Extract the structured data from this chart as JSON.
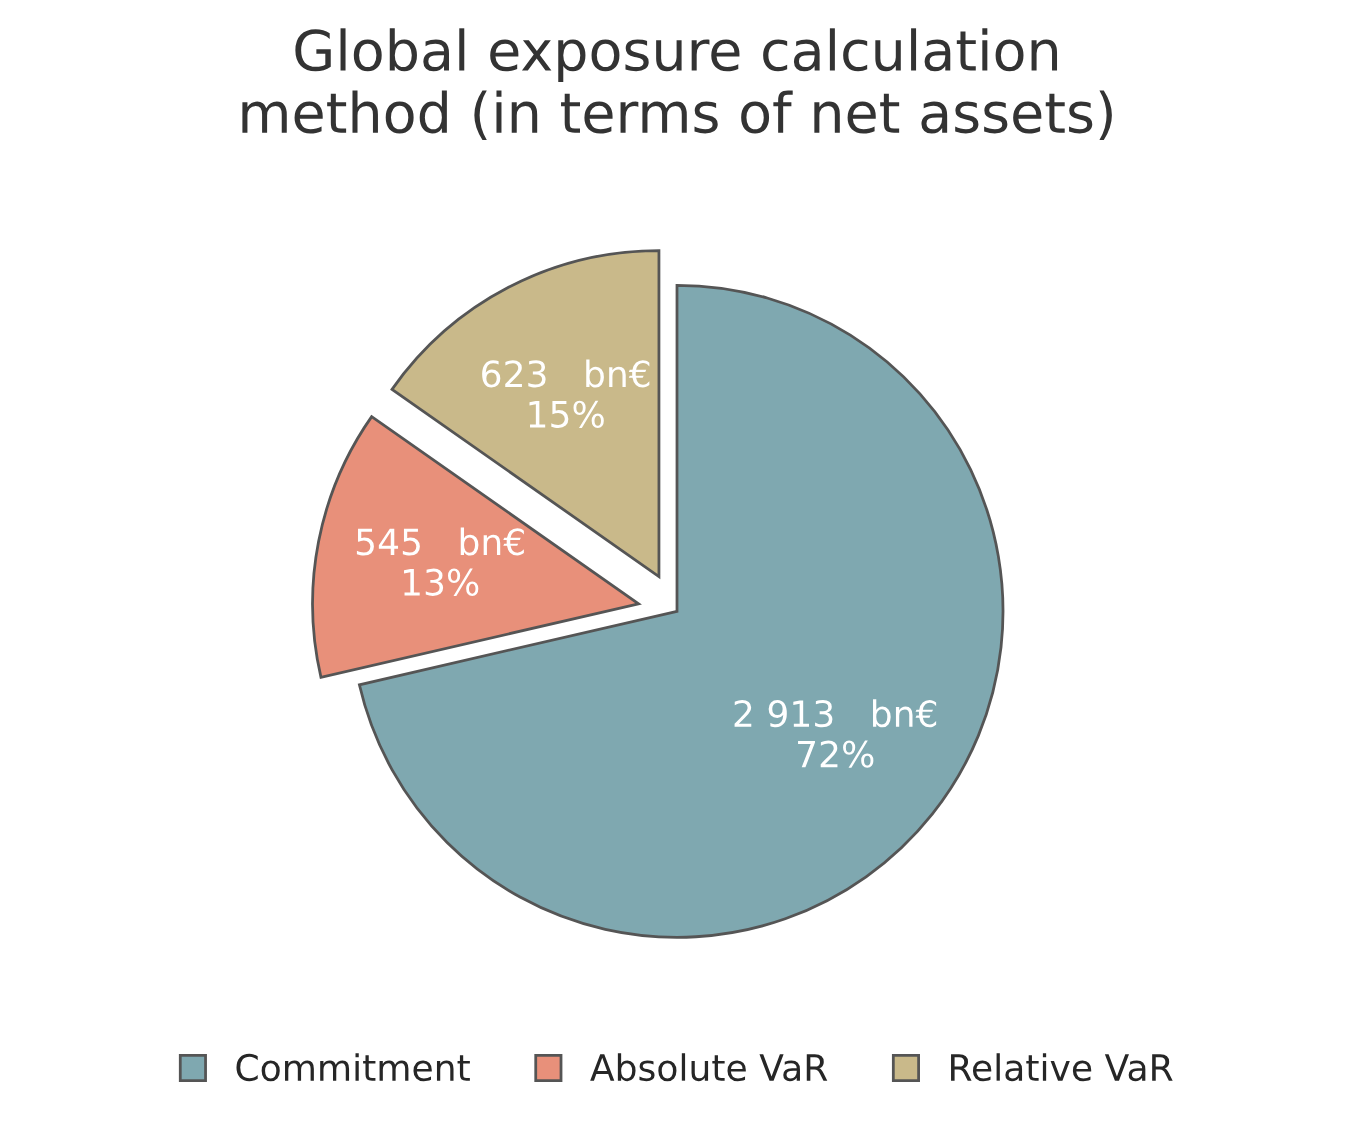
{
  "chart_data": {
    "type": "pie",
    "title": "Global exposure calculation\nmethod (in terms of net assets)",
    "categories": [
      "Commitment",
      "Absolute VaR",
      "Relative VaR"
    ],
    "values": [
      2913,
      545,
      623
    ],
    "colors": [
      "#7fa8b0",
      "#e8907a",
      "#c9b98a"
    ],
    "value_labels": [
      "2 913   bn€\n72%",
      "545   bn€\n13%",
      "623   bn€\n15%"
    ],
    "legend": "bottom"
  }
}
